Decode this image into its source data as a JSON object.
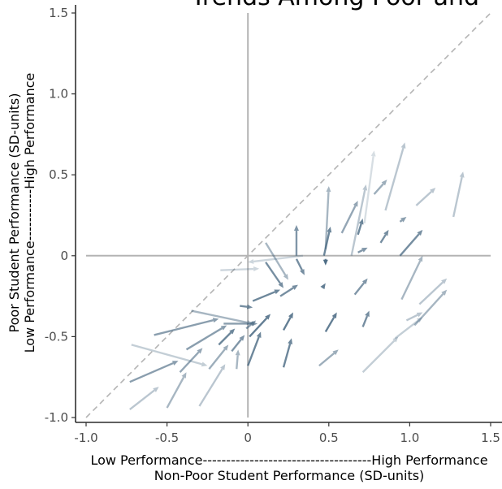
{
  "chart_data": {
    "type": "vector-field",
    "title": "Trends Among Poor and",
    "xlabel_line1": "Low Performance------------------------------------High Performance",
    "xlabel_line2": "Non-Poor Student Performance (SD-units)",
    "ylabel_line1": "Poor Student Performance (SD-units)",
    "ylabel_line2": "Low Performance-----------High Performance",
    "xlim": [
      -1.0,
      1.5
    ],
    "ylim": [
      -1.0,
      1.5
    ],
    "xticks": [
      -1.0,
      -0.5,
      0,
      0.5,
      1.0,
      1.5
    ],
    "xtick_labels": [
      "-1.0",
      "-0.5",
      "0",
      "0.5",
      "1.0",
      "1.5"
    ],
    "yticks": [
      -1.0,
      -0.5,
      0,
      0.5,
      1.0,
      1.5
    ],
    "ytick_labels": [
      "-1.0",
      "-0.5",
      "0",
      "0.5",
      "1.0",
      "1.5"
    ],
    "reference_lines": {
      "diagonal": "y = x (dashed)",
      "horizontal": 0,
      "vertical": 0
    },
    "colors": {
      "arrow": "#3d5f7a",
      "reference": "#b4b4b4",
      "axis": "#000000"
    },
    "arrows": [
      {
        "x0": 0.34,
        "y0": 0.0,
        "x1": 0.0,
        "y1": -0.04,
        "o": 0.25
      },
      {
        "x0": -0.17,
        "y0": -0.09,
        "x1": 0.07,
        "y1": -0.08,
        "o": 0.25
      },
      {
        "x0": 0.11,
        "y0": 0.08,
        "x1": 0.25,
        "y1": -0.15,
        "o": 0.45
      },
      {
        "x0": 0.11,
        "y0": -0.04,
        "x1": 0.22,
        "y1": -0.2,
        "o": 0.7
      },
      {
        "x0": 0.3,
        "y0": 0.0,
        "x1": 0.3,
        "y1": 0.19,
        "o": 0.65
      },
      {
        "x0": 0.3,
        "y0": -0.02,
        "x1": 0.35,
        "y1": -0.12,
        "o": 0.7
      },
      {
        "x0": 0.48,
        "y0": 0.04,
        "x1": 0.5,
        "y1": 0.43,
        "o": 0.45
      },
      {
        "x0": 0.47,
        "y0": 0.0,
        "x1": 0.51,
        "y1": 0.18,
        "o": 0.75
      },
      {
        "x0": 0.48,
        "y0": -0.02,
        "x1": 0.48,
        "y1": -0.06,
        "o": 0.9
      },
      {
        "x0": 0.58,
        "y0": 0.14,
        "x1": 0.68,
        "y1": 0.34,
        "o": 0.55
      },
      {
        "x0": 0.64,
        "y0": 0.0,
        "x1": 0.73,
        "y1": 0.44,
        "o": 0.35
      },
      {
        "x0": 0.72,
        "y0": 0.2,
        "x1": 0.78,
        "y1": 0.65,
        "o": 0.2
      },
      {
        "x0": 0.68,
        "y0": 0.13,
        "x1": 0.71,
        "y1": 0.23,
        "o": 0.75
      },
      {
        "x0": 0.68,
        "y0": 0.02,
        "x1": 0.74,
        "y1": 0.05,
        "o": 0.65
      },
      {
        "x0": 0.78,
        "y0": 0.38,
        "x1": 0.86,
        "y1": 0.47,
        "o": 0.5
      },
      {
        "x0": 0.85,
        "y0": 0.28,
        "x1": 0.97,
        "y1": 0.7,
        "o": 0.35
      },
      {
        "x0": 0.82,
        "y0": 0.08,
        "x1": 0.87,
        "y1": 0.16,
        "o": 0.7
      },
      {
        "x0": 0.94,
        "y0": 0.21,
        "x1": 0.98,
        "y1": 0.24,
        "o": 0.6
      },
      {
        "x0": 0.94,
        "y0": 0.0,
        "x1": 1.08,
        "y1": 0.16,
        "o": 0.7
      },
      {
        "x0": 1.04,
        "y0": 0.31,
        "x1": 1.16,
        "y1": 0.42,
        "o": 0.35
      },
      {
        "x0": 1.27,
        "y0": 0.24,
        "x1": 1.33,
        "y1": 0.52,
        "o": 0.35
      },
      {
        "x0": 0.03,
        "y0": -0.28,
        "x1": 0.2,
        "y1": -0.21,
        "o": 0.75
      },
      {
        "x0": 0.2,
        "y0": -0.25,
        "x1": 0.31,
        "y1": -0.18,
        "o": 0.7
      },
      {
        "x0": 0.46,
        "y0": -0.2,
        "x1": 0.48,
        "y1": -0.17,
        "o": 0.8
      },
      {
        "x0": 0.66,
        "y0": -0.24,
        "x1": 0.74,
        "y1": -0.14,
        "o": 0.65
      },
      {
        "x0": 0.95,
        "y0": -0.27,
        "x1": 1.08,
        "y1": 0.0,
        "o": 0.45
      },
      {
        "x0": 1.06,
        "y0": -0.3,
        "x1": 1.23,
        "y1": -0.14,
        "o": 0.35
      },
      {
        "x0": -0.05,
        "y0": -0.31,
        "x1": 0.03,
        "y1": -0.32,
        "o": 0.7
      },
      {
        "x0": -0.35,
        "y0": -0.34,
        "x1": 0.03,
        "y1": -0.42,
        "o": 0.45
      },
      {
        "x0": -0.15,
        "y0": -0.42,
        "x1": 0.06,
        "y1": -0.42,
        "o": 0.6
      },
      {
        "x0": -0.01,
        "y0": -0.45,
        "x1": 0.05,
        "y1": -0.4,
        "o": 0.6
      },
      {
        "x0": 0.01,
        "y0": -0.5,
        "x1": 0.14,
        "y1": -0.36,
        "o": 0.8
      },
      {
        "x0": 0.22,
        "y0": -0.46,
        "x1": 0.28,
        "y1": -0.35,
        "o": 0.8
      },
      {
        "x0": 0.48,
        "y0": -0.47,
        "x1": 0.55,
        "y1": -0.35,
        "o": 0.8
      },
      {
        "x0": 0.71,
        "y0": -0.44,
        "x1": 0.75,
        "y1": -0.34,
        "o": 0.7
      },
      {
        "x0": 0.98,
        "y0": -0.4,
        "x1": 1.08,
        "y1": -0.35,
        "o": 0.35
      },
      {
        "x0": 1.03,
        "y0": -0.43,
        "x1": 1.23,
        "y1": -0.21,
        "o": 0.45
      },
      {
        "x0": -0.58,
        "y0": -0.49,
        "x1": -0.18,
        "y1": -0.39,
        "o": 0.6
      },
      {
        "x0": -0.38,
        "y0": -0.58,
        "x1": -0.13,
        "y1": -0.43,
        "o": 0.6
      },
      {
        "x0": -0.18,
        "y0": -0.55,
        "x1": -0.08,
        "y1": -0.45,
        "o": 0.75
      },
      {
        "x0": -0.1,
        "y0": -0.59,
        "x1": -0.02,
        "y1": -0.49,
        "o": 0.65
      },
      {
        "x0": -0.73,
        "y0": -0.78,
        "x1": -0.43,
        "y1": -0.65,
        "o": 0.6
      },
      {
        "x0": -0.72,
        "y0": -0.55,
        "x1": -0.25,
        "y1": -0.68,
        "o": 0.3
      },
      {
        "x0": -0.42,
        "y0": -0.72,
        "x1": -0.28,
        "y1": -0.57,
        "o": 0.55
      },
      {
        "x0": -0.24,
        "y0": -0.7,
        "x1": -0.12,
        "y1": -0.55,
        "o": 0.5
      },
      {
        "x0": -0.07,
        "y0": -0.7,
        "x1": -0.06,
        "y1": -0.58,
        "o": 0.45
      },
      {
        "x0": 0.0,
        "y0": -0.68,
        "x1": 0.08,
        "y1": -0.47,
        "o": 0.75
      },
      {
        "x0": 0.22,
        "y0": -0.69,
        "x1": 0.27,
        "y1": -0.51,
        "o": 0.75
      },
      {
        "x0": 0.44,
        "y0": -0.68,
        "x1": 0.56,
        "y1": -0.58,
        "o": 0.5
      },
      {
        "x0": -0.73,
        "y0": -0.95,
        "x1": -0.55,
        "y1": -0.81,
        "o": 0.35
      },
      {
        "x0": -0.5,
        "y0": -0.94,
        "x1": -0.38,
        "y1": -0.72,
        "o": 0.45
      },
      {
        "x0": -0.3,
        "y0": -0.93,
        "x1": -0.14,
        "y1": -0.67,
        "o": 0.35
      },
      {
        "x0": 0.71,
        "y0": -0.72,
        "x1": 0.93,
        "y1": -0.5,
        "o": 0.3
      },
      {
        "x0": 0.91,
        "y0": -0.51,
        "x1": 1.08,
        "y1": -0.38,
        "o": 0.3
      }
    ]
  }
}
